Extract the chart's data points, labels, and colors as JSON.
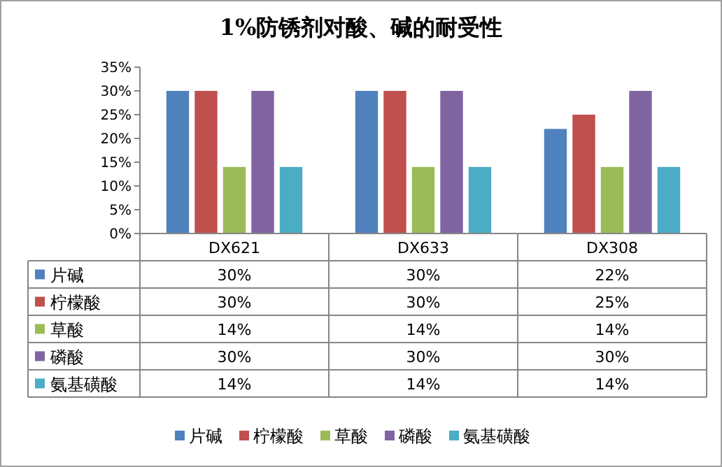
{
  "chart_data": {
    "type": "bar",
    "title": "1%防锈剂对酸、碱的耐受性",
    "categories": [
      "DX621",
      "DX633",
      "DX308"
    ],
    "ylim": [
      0,
      35
    ],
    "yticks": [
      {
        "value": 0,
        "label": "0%"
      },
      {
        "value": 5,
        "label": "5%"
      },
      {
        "value": 10,
        "label": "10%"
      },
      {
        "value": 15,
        "label": "15%"
      },
      {
        "value": 20,
        "label": "20%"
      },
      {
        "value": 25,
        "label": "25%"
      },
      {
        "value": 30,
        "label": "30%"
      },
      {
        "value": 35,
        "label": "35%"
      }
    ],
    "legend": "bottom",
    "series": [
      {
        "name": "片碱",
        "color": "#4f81bd",
        "values": [
          30,
          30,
          22
        ],
        "value_labels": [
          "30%",
          "30%",
          "22%"
        ]
      },
      {
        "name": "柠檬酸",
        "color": "#c0504d",
        "values": [
          30,
          30,
          25
        ],
        "value_labels": [
          "30%",
          "30%",
          "25%"
        ]
      },
      {
        "name": "草酸",
        "color": "#9bbb59",
        "values": [
          14,
          14,
          14
        ],
        "value_labels": [
          "14%",
          "14%",
          "14%"
        ]
      },
      {
        "name": "磷酸",
        "color": "#8064a2",
        "values": [
          30,
          30,
          30
        ],
        "value_labels": [
          "30%",
          "30%",
          "30%"
        ]
      },
      {
        "name": "氨基磺酸",
        "color": "#4bacc6",
        "values": [
          14,
          14,
          14
        ],
        "value_labels": [
          "14%",
          "14%",
          "14%"
        ]
      }
    ]
  }
}
